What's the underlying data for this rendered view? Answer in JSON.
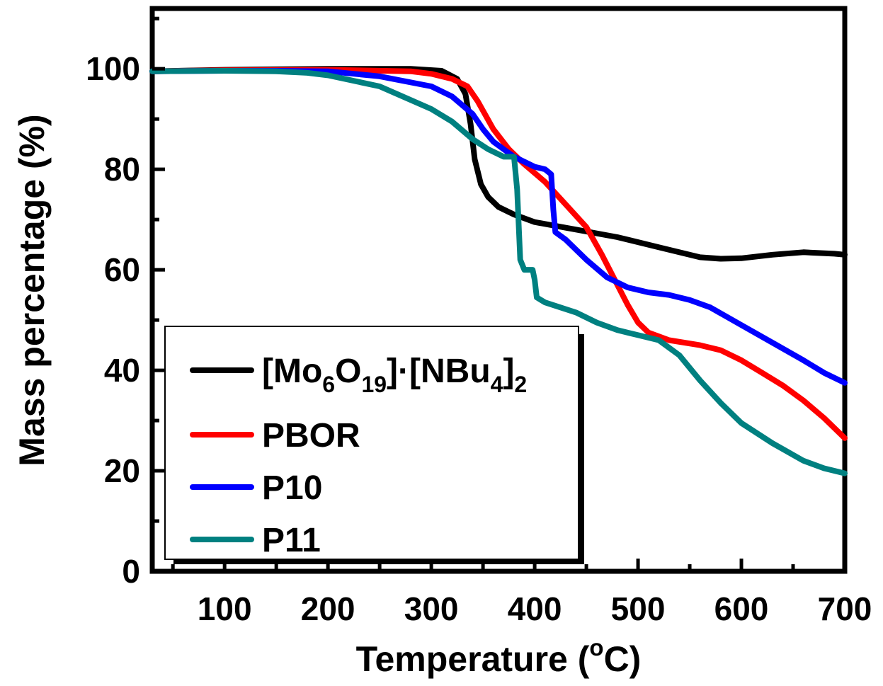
{
  "chart_data": {
    "type": "line",
    "xlabel_main": "Temperature (",
    "xlabel_sup": "o",
    "xlabel_end": "C)",
    "ylabel": "Mass percentage (%)",
    "xlim": [
      30,
      700
    ],
    "ylim": [
      0,
      112
    ],
    "x_ticks": [
      100,
      200,
      300,
      400,
      500,
      600,
      700
    ],
    "x_tick_labels": [
      "100",
      "200",
      "300",
      "400",
      "500",
      "600",
      "700"
    ],
    "y_ticks": [
      0,
      20,
      40,
      60,
      80,
      100
    ],
    "y_tick_labels": [
      "0",
      "20",
      "40",
      "60",
      "80",
      "100"
    ],
    "grid": false,
    "legend_position": "bottom-left",
    "series": [
      {
        "name": "[Mo6O19]·[NBu4]2",
        "legend": {
          "t1": "[Mo",
          "s1": "6",
          "t2": "O",
          "s2": "19",
          "t3": "]·[NBu",
          "s3": "4",
          "t4": "]",
          "s4": "2"
        },
        "color": "#000000",
        "x": [
          30,
          100,
          200,
          280,
          310,
          325,
          333,
          338,
          342,
          348,
          355,
          365,
          380,
          400,
          440,
          480,
          520,
          560,
          580,
          600,
          630,
          660,
          690,
          700
        ],
        "y": [
          99.5,
          99.8,
          100,
          100,
          99.6,
          98,
          95,
          89,
          82,
          77,
          74.5,
          72.5,
          71,
          69.5,
          68,
          66.5,
          64.5,
          62.5,
          62.2,
          62.3,
          63,
          63.5,
          63.2,
          63
        ]
      },
      {
        "name": "PBOR",
        "legend": {
          "t1": "PBOR"
        },
        "color": "#ff0000",
        "x": [
          30,
          100,
          200,
          280,
          300,
          320,
          335,
          345,
          360,
          375,
          390,
          410,
          430,
          450,
          465,
          480,
          490,
          500,
          510,
          530,
          560,
          580,
          600,
          620,
          640,
          660,
          680,
          700
        ],
        "y": [
          99.5,
          99.7,
          99.8,
          99.5,
          99,
          98,
          96.5,
          93.5,
          88,
          84,
          81,
          77.5,
          73,
          68.5,
          63,
          57,
          53,
          49.5,
          47.5,
          46,
          45,
          44,
          42,
          39.5,
          37,
          34,
          30.5,
          26.5
        ]
      },
      {
        "name": "P10",
        "legend": {
          "t1": "P10"
        },
        "color": "#0000ff",
        "x": [
          30,
          100,
          150,
          200,
          250,
          300,
          320,
          340,
          350,
          360,
          370,
          380,
          390,
          400,
          410,
          416,
          418,
          420,
          430,
          450,
          470,
          490,
          510,
          530,
          550,
          570,
          600,
          630,
          660,
          680,
          700
        ],
        "y": [
          99.5,
          99.6,
          99.6,
          99.5,
          98.5,
          96.5,
          94.5,
          91,
          88,
          85.5,
          84,
          82.5,
          81.5,
          80.5,
          80,
          79,
          72,
          67.5,
          66,
          62,
          58.5,
          56.5,
          55.5,
          55,
          54,
          52.5,
          49,
          45.5,
          42,
          39.5,
          37.5
        ]
      },
      {
        "name": "P11",
        "legend": {
          "t1": "P11"
        },
        "color": "#008080",
        "x": [
          30,
          100,
          150,
          180,
          200,
          250,
          300,
          320,
          340,
          355,
          370,
          380,
          383,
          386,
          390,
          398,
          400,
          402,
          410,
          440,
          460,
          480,
          500,
          520,
          540,
          560,
          580,
          600,
          630,
          660,
          680,
          700
        ],
        "y": [
          99.5,
          99.6,
          99.5,
          99.2,
          98.7,
          96.5,
          92,
          89.5,
          86,
          84,
          82.5,
          82.5,
          76,
          62,
          60,
          60,
          58,
          54.5,
          53.5,
          51.5,
          49.5,
          48,
          47,
          46,
          43,
          38,
          33.5,
          29.5,
          25.5,
          22,
          20.5,
          19.5
        ]
      }
    ]
  }
}
